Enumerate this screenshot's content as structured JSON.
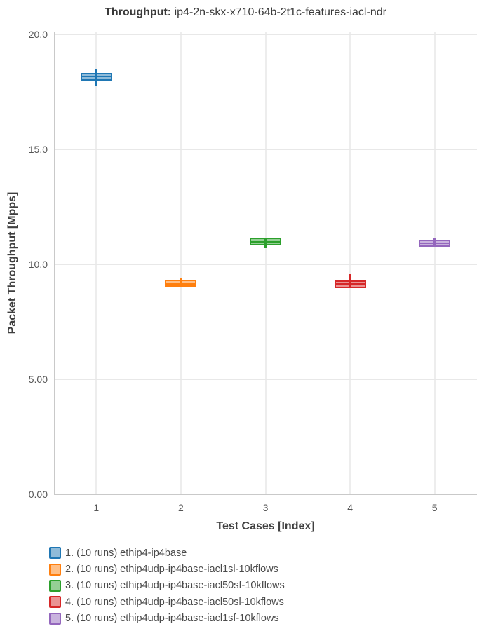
{
  "title": {
    "prefix": "Throughput:",
    "test_name": " ip4-2n-skx-x710-64b-2t1c-features-iacl-ndr"
  },
  "chart_data": {
    "type": "box",
    "title": "Throughput: ip4-2n-skx-x710-64b-2t1c-features-iacl-ndr",
    "xlabel": "Test Cases [Index]",
    "ylabel": "Packet Throughput [Mpps]",
    "ylim": [
      0,
      20
    ],
    "grid": true,
    "legend_position": "bottom-left",
    "categories": [
      1,
      2,
      3,
      4,
      5
    ],
    "xticks": [
      "1",
      "2",
      "3",
      "4",
      "5"
    ],
    "yticks": [
      {
        "label": "20.0",
        "value": 20
      },
      {
        "label": "15.0",
        "value": 15
      },
      {
        "label": "10.0",
        "value": 10
      },
      {
        "label": "5.00",
        "value": 5
      },
      {
        "label": "0.00",
        "value": 0
      }
    ],
    "series": [
      {
        "name": "1. (10 runs) ethip4-ip4base",
        "color": "#1f77b4",
        "x": 1,
        "low": 17.78,
        "q1": 17.99,
        "median": 18.16,
        "q3": 18.32,
        "high": 18.51
      },
      {
        "name": "2. (10 runs) ethip4udp-ip4base-iacl1sl-10kflows",
        "color": "#ff7f0e",
        "x": 2,
        "low": 9.0,
        "q1": 9.01,
        "median": 9.15,
        "q3": 9.34,
        "high": 9.42
      },
      {
        "name": "3. (10 runs) ethip4udp-ip4base-iacl50sf-10kflows",
        "color": "#2ca02c",
        "x": 3,
        "low": 10.71,
        "q1": 10.81,
        "median": 10.98,
        "q3": 11.15,
        "high": 11.15
      },
      {
        "name": "4. (10 runs) ethip4udp-ip4base-iacl50sl-10kflows",
        "color": "#d62728",
        "x": 4,
        "low": 8.95,
        "q1": 8.97,
        "median": 9.16,
        "q3": 9.29,
        "high": 9.58
      },
      {
        "name": "5. (10 runs) ethip4udp-ip4base-iacl1sf-10kflows",
        "color": "#9467bd",
        "x": 5,
        "low": 10.72,
        "q1": 10.75,
        "median": 10.91,
        "q3": 11.08,
        "high": 11.15
      }
    ]
  }
}
